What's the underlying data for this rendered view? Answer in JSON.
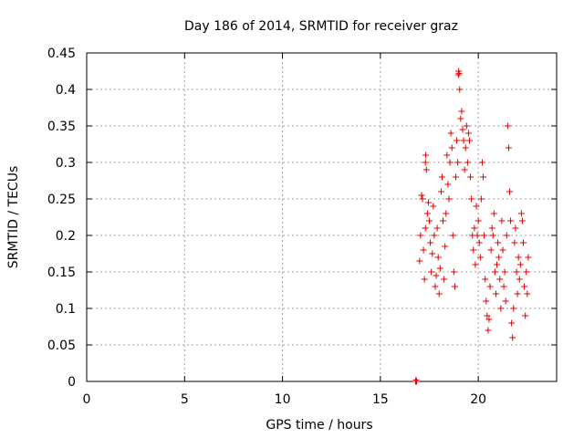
{
  "chart_data": {
    "type": "scatter",
    "title": "Day 186 of 2014, SRMTID for receiver graz",
    "xlabel": "GPS time / hours",
    "ylabel": "SRMTID / TECUs",
    "xlim": [
      0,
      24
    ],
    "ylim": [
      0,
      0.45
    ],
    "xticks": [
      0,
      5,
      10,
      15,
      20
    ],
    "yticks": [
      0,
      0.05,
      0.1,
      0.15,
      0.2,
      0.25,
      0.3,
      0.35,
      0.4,
      0.45
    ],
    "xtick_labels": [
      "0",
      "5",
      "10",
      "15",
      "20"
    ],
    "ytick_labels": [
      "0",
      "0.05",
      "0.1",
      "0.15",
      "0.2",
      "0.25",
      "0.3",
      "0.35",
      "0.4",
      "0.45"
    ],
    "grid": true,
    "marker": "+",
    "color": "#e00000",
    "series": [
      {
        "name": "SRMTID",
        "points": [
          [
            16.8,
            0.0
          ],
          [
            16.85,
            0.0
          ],
          [
            16.82,
            0.002
          ],
          [
            17.0,
            0.165
          ],
          [
            17.05,
            0.2
          ],
          [
            17.1,
            0.255
          ],
          [
            17.15,
            0.25
          ],
          [
            17.2,
            0.18
          ],
          [
            17.25,
            0.14
          ],
          [
            17.3,
            0.3
          ],
          [
            17.32,
            0.31
          ],
          [
            17.35,
            0.29
          ],
          [
            17.3,
            0.21
          ],
          [
            17.4,
            0.23
          ],
          [
            17.45,
            0.245
          ],
          [
            17.5,
            0.22
          ],
          [
            17.55,
            0.19
          ],
          [
            17.6,
            0.15
          ],
          [
            17.65,
            0.175
          ],
          [
            17.7,
            0.24
          ],
          [
            17.75,
            0.2
          ],
          [
            17.8,
            0.13
          ],
          [
            17.85,
            0.145
          ],
          [
            17.9,
            0.21
          ],
          [
            17.95,
            0.17
          ],
          [
            18.0,
            0.12
          ],
          [
            18.05,
            0.155
          ],
          [
            18.1,
            0.26
          ],
          [
            18.15,
            0.28
          ],
          [
            18.2,
            0.22
          ],
          [
            18.25,
            0.14
          ],
          [
            18.3,
            0.185
          ],
          [
            18.35,
            0.23
          ],
          [
            18.4,
            0.31
          ],
          [
            18.45,
            0.27
          ],
          [
            18.5,
            0.25
          ],
          [
            18.55,
            0.3
          ],
          [
            18.6,
            0.34
          ],
          [
            18.65,
            0.32
          ],
          [
            18.7,
            0.2
          ],
          [
            18.75,
            0.15
          ],
          [
            18.8,
            0.13
          ],
          [
            18.85,
            0.28
          ],
          [
            18.9,
            0.33
          ],
          [
            18.95,
            0.3
          ],
          [
            18.98,
            0.42
          ],
          [
            19.0,
            0.425
          ],
          [
            19.02,
            0.422
          ],
          [
            19.05,
            0.4
          ],
          [
            19.1,
            0.36
          ],
          [
            19.15,
            0.37
          ],
          [
            19.2,
            0.345
          ],
          [
            19.25,
            0.33
          ],
          [
            19.3,
            0.29
          ],
          [
            19.35,
            0.32
          ],
          [
            19.4,
            0.35
          ],
          [
            19.45,
            0.3
          ],
          [
            19.5,
            0.34
          ],
          [
            19.55,
            0.33
          ],
          [
            19.6,
            0.28
          ],
          [
            19.65,
            0.25
          ],
          [
            19.7,
            0.2
          ],
          [
            19.75,
            0.18
          ],
          [
            19.8,
            0.21
          ],
          [
            19.85,
            0.16
          ],
          [
            19.9,
            0.24
          ],
          [
            19.95,
            0.2
          ],
          [
            20.0,
            0.22
          ],
          [
            20.05,
            0.19
          ],
          [
            20.1,
            0.17
          ],
          [
            20.15,
            0.25
          ],
          [
            20.2,
            0.3
          ],
          [
            20.25,
            0.28
          ],
          [
            20.3,
            0.2
          ],
          [
            20.35,
            0.14
          ],
          [
            20.4,
            0.11
          ],
          [
            20.45,
            0.09
          ],
          [
            20.5,
            0.07
          ],
          [
            20.55,
            0.085
          ],
          [
            20.6,
            0.13
          ],
          [
            20.65,
            0.18
          ],
          [
            20.7,
            0.21
          ],
          [
            20.75,
            0.2
          ],
          [
            20.8,
            0.23
          ],
          [
            20.85,
            0.15
          ],
          [
            20.9,
            0.12
          ],
          [
            20.95,
            0.16
          ],
          [
            21.0,
            0.19
          ],
          [
            21.05,
            0.17
          ],
          [
            21.1,
            0.14
          ],
          [
            21.15,
            0.1
          ],
          [
            21.2,
            0.22
          ],
          [
            21.25,
            0.18
          ],
          [
            21.3,
            0.13
          ],
          [
            21.35,
            0.15
          ],
          [
            21.4,
            0.11
          ],
          [
            21.45,
            0.2
          ],
          [
            21.5,
            0.35
          ],
          [
            21.55,
            0.32
          ],
          [
            21.6,
            0.26
          ],
          [
            21.65,
            0.22
          ],
          [
            21.7,
            0.08
          ],
          [
            21.75,
            0.06
          ],
          [
            21.8,
            0.1
          ],
          [
            21.85,
            0.19
          ],
          [
            21.9,
            0.21
          ],
          [
            21.95,
            0.15
          ],
          [
            22.0,
            0.12
          ],
          [
            22.05,
            0.17
          ],
          [
            22.1,
            0.14
          ],
          [
            22.15,
            0.16
          ],
          [
            22.2,
            0.23
          ],
          [
            22.25,
            0.22
          ],
          [
            22.3,
            0.19
          ],
          [
            22.35,
            0.13
          ],
          [
            22.4,
            0.09
          ],
          [
            22.45,
            0.15
          ],
          [
            22.5,
            0.12
          ],
          [
            22.55,
            0.17
          ]
        ]
      }
    ]
  }
}
